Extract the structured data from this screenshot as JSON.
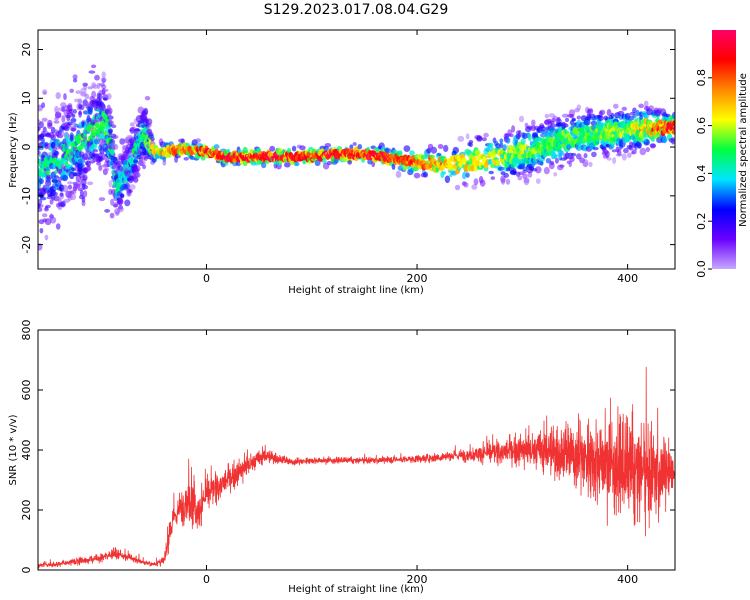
{
  "chart_data": [
    {
      "type": "heatmap",
      "title": "S129.2023.017.08.04.G29",
      "xlabel": "Height of straight line (km)",
      "ylabel": "Frequency (Hz)",
      "xlim": [
        -160,
        445
      ],
      "ylim": [
        -25,
        24
      ],
      "xticks": [
        "0",
        "200",
        "400"
      ],
      "xtick_values": [
        0,
        200,
        400
      ],
      "yticks": [
        "-20",
        "-10",
        "0",
        "10",
        "20"
      ],
      "ytick_values": [
        -20,
        -10,
        0,
        10,
        20
      ],
      "colorbar": {
        "label": "Normalized spectral amplitude",
        "range": [
          0,
          1
        ],
        "ticks": [
          "0.0",
          "0.2",
          "0.4",
          "0.6",
          "0.8"
        ],
        "tick_values": [
          0,
          0.2,
          0.4,
          0.6,
          0.8
        ],
        "colormap": [
          "#c8a8ff",
          "#6a00ff",
          "#0000ff",
          "#00e5ff",
          "#00ff40",
          "#ffff00",
          "#ff8800",
          "#ff0000",
          "#ff0066"
        ]
      },
      "ridge": {
        "x": [
          -160,
          -140,
          -120,
          -105,
          -95,
          -85,
          -75,
          -60,
          -50,
          -40,
          -30,
          -20,
          0,
          20,
          40,
          60,
          80,
          100,
          120,
          140,
          160,
          180,
          200,
          220,
          240,
          260,
          280,
          300,
          320,
          340,
          360,
          380,
          400,
          420,
          440
        ],
        "y": [
          -5,
          -3,
          1,
          4,
          5,
          -8,
          -5,
          3,
          -1,
          -1,
          -0.5,
          -0.5,
          -1,
          -2,
          -2,
          -2,
          -2,
          -2,
          -1.5,
          -1.5,
          -1.5,
          -2.5,
          -3,
          -3.5,
          -3.5,
          -2.5,
          -2,
          -1,
          0,
          1.5,
          2.5,
          3,
          3.5,
          4,
          4
        ],
        "amplitude": [
          0.45,
          0.5,
          0.5,
          0.55,
          0.55,
          0.45,
          0.45,
          0.5,
          0.7,
          0.75,
          0.85,
          0.8,
          0.9,
          0.95,
          0.95,
          0.95,
          0.9,
          0.9,
          0.95,
          0.95,
          0.95,
          0.9,
          0.85,
          0.75,
          0.7,
          0.7,
          0.65,
          0.6,
          0.55,
          0.55,
          0.55,
          0.6,
          0.6,
          0.75,
          0.95
        ],
        "spread_hz": [
          8,
          8,
          7,
          6,
          6,
          4,
          4,
          4,
          1.5,
          1.2,
          1.2,
          1.2,
          1.2,
          1.2,
          1.2,
          1.2,
          1.2,
          1.2,
          1.2,
          1.2,
          1.2,
          1.5,
          2,
          2.5,
          3,
          3.5,
          3.5,
          4,
          4,
          4,
          4,
          3.5,
          3.5,
          3,
          2
        ]
      }
    },
    {
      "type": "line",
      "xlabel": "Height of straight line (km)",
      "ylabel": "SNR (10 * v/v)",
      "xlim": [
        -160,
        445
      ],
      "ylim": [
        0,
        800
      ],
      "xticks": [
        "0",
        "200",
        "400"
      ],
      "xtick_values": [
        0,
        200,
        400
      ],
      "yticks": [
        "0",
        "200",
        "400",
        "600",
        "800"
      ],
      "ytick_values": [
        0,
        200,
        400,
        600,
        800
      ],
      "color": "#f03232",
      "x": [
        -160,
        -140,
        -120,
        -100,
        -90,
        -80,
        -60,
        -50,
        -40,
        -35,
        -30,
        -20,
        -12,
        -10,
        0,
        20,
        40,
        55,
        70,
        80,
        100,
        150,
        200,
        250,
        300,
        340,
        380,
        400,
        420,
        440,
        445
      ],
      "y": [
        15,
        20,
        30,
        40,
        55,
        50,
        25,
        20,
        30,
        120,
        180,
        230,
        250,
        180,
        250,
        300,
        350,
        380,
        370,
        360,
        365,
        365,
        370,
        385,
        400,
        390,
        360,
        330,
        320,
        330,
        330
      ],
      "spread": [
        8,
        10,
        15,
        15,
        20,
        20,
        10,
        10,
        20,
        40,
        60,
        70,
        140,
        60,
        60,
        50,
        45,
        30,
        20,
        15,
        12,
        12,
        15,
        25,
        60,
        120,
        170,
        200,
        190,
        120,
        10
      ]
    }
  ]
}
